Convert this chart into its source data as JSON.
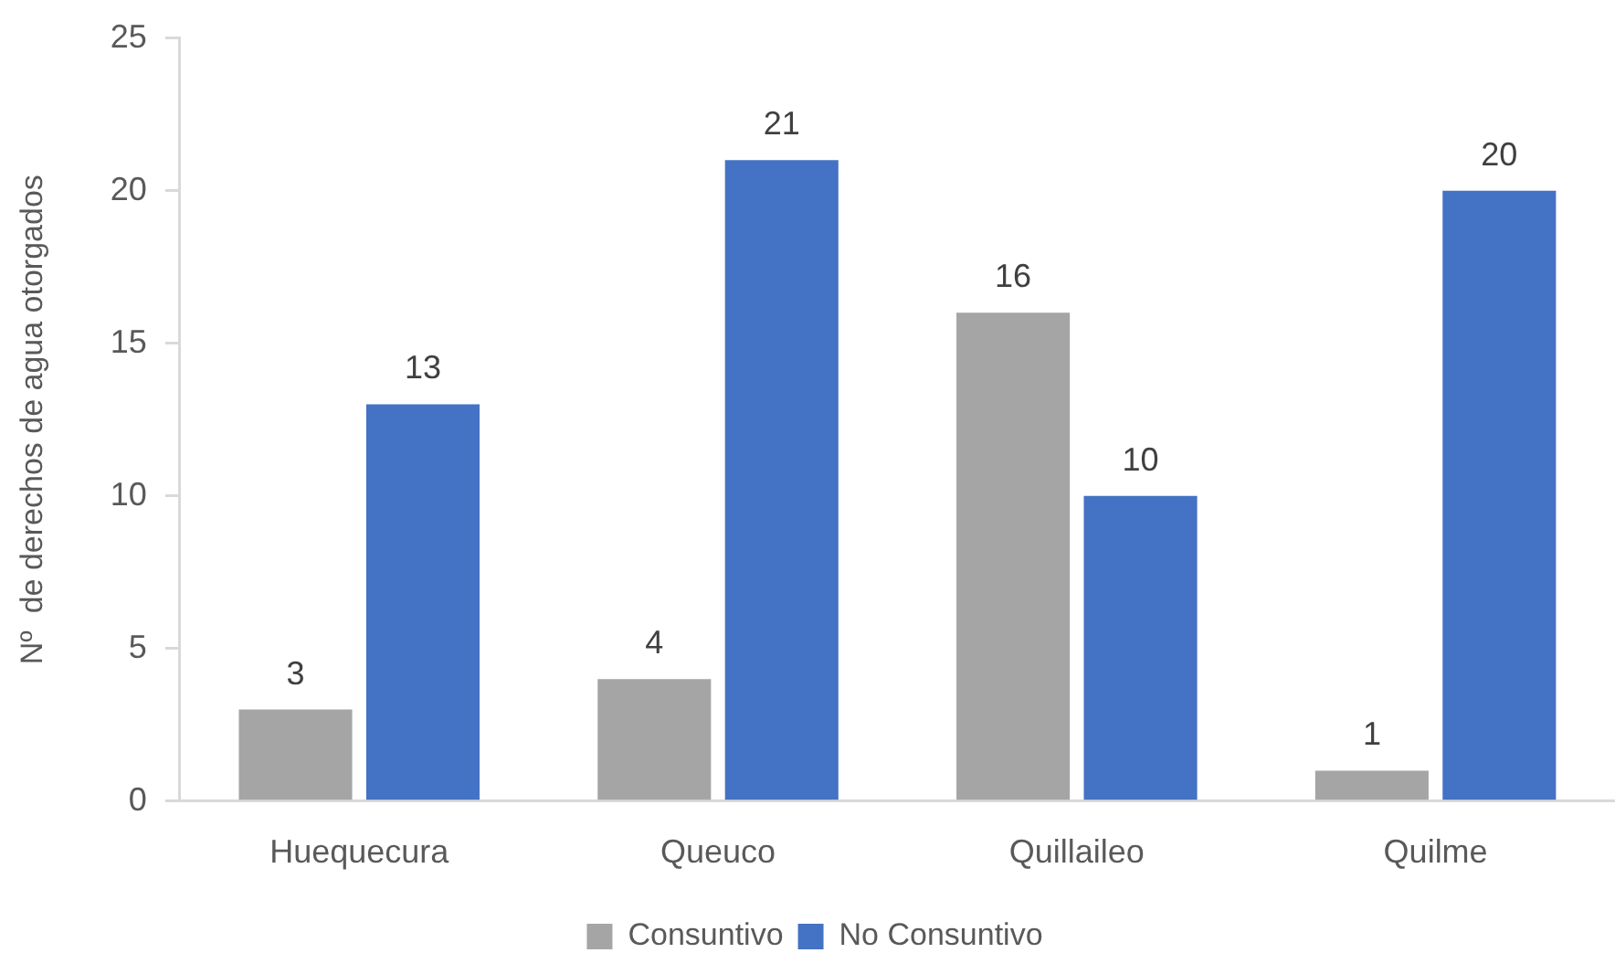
{
  "chart_data": {
    "type": "bar",
    "ylabel": "Nº  de derechos de agua otorgados",
    "categories": [
      "Huequecura",
      "Queuco",
      "Quillaileo",
      "Quilme"
    ],
    "series": [
      {
        "name": "Consuntivo",
        "color": "#a5a5a5",
        "values": [
          3,
          4,
          16,
          1
        ]
      },
      {
        "name": "No Consuntivo",
        "color": "#4472c4",
        "values": [
          13,
          21,
          10,
          20
        ]
      }
    ],
    "ylim": [
      0,
      25
    ],
    "yticks": [
      0,
      5,
      10,
      15,
      20,
      25
    ],
    "grid": false,
    "legend": "bottom",
    "data_labels": true
  }
}
